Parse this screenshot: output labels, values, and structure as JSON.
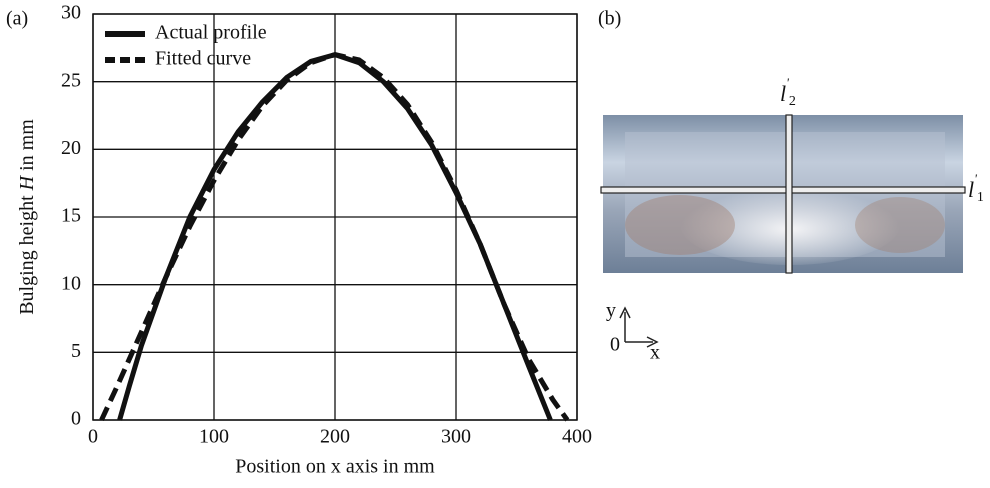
{
  "chart_data": {
    "type": "line",
    "panel_label": "(a)",
    "x_label": "Position on x axis in mm",
    "y_label_parts": [
      "Bulging height ",
      "H",
      " in mm"
    ],
    "xlim": [
      0,
      400
    ],
    "xticks": [
      0,
      100,
      200,
      300,
      400
    ],
    "ylim": [
      0,
      30
    ],
    "yticks": [
      0,
      5,
      10,
      15,
      20,
      25,
      30
    ],
    "grid": true,
    "legend": "upper left",
    "series": [
      {
        "name": "Actual profile",
        "color": "#111111",
        "style": "solid",
        "x": [
          22,
          30,
          40,
          60,
          80,
          100,
          120,
          140,
          160,
          180,
          200,
          220,
          240,
          260,
          280,
          300,
          320,
          340,
          360,
          378
        ],
        "values": [
          0,
          2.5,
          5.5,
          10.5,
          15,
          18.5,
          21.3,
          23.5,
          25.3,
          26.5,
          27,
          26.4,
          25,
          23,
          20.3,
          16.8,
          13,
          8.5,
          4,
          0
        ]
      },
      {
        "name": "Fitted curve",
        "color": "#111111",
        "style": "dashed",
        "x": [
          7,
          20,
          40,
          60,
          80,
          100,
          120,
          140,
          160,
          180,
          200,
          220,
          240,
          260,
          280,
          300,
          320,
          340,
          360,
          380,
          392
        ],
        "values": [
          0,
          2.5,
          6.5,
          10.5,
          14.3,
          17.7,
          20.7,
          23.2,
          25.1,
          26.4,
          27,
          26.6,
          25.3,
          23.3,
          20.5,
          17,
          13,
          8.5,
          4.5,
          1.5,
          0
        ]
      }
    ]
  },
  "figure_b": {
    "panel_label": "(b)",
    "line_labels": [
      {
        "letter": "l",
        "prime": "'",
        "sub": "2"
      },
      {
        "letter": "l",
        "prime": "'",
        "sub": "1"
      }
    ],
    "axes": {
      "y": "y",
      "x": "x",
      "origin": "0"
    }
  }
}
